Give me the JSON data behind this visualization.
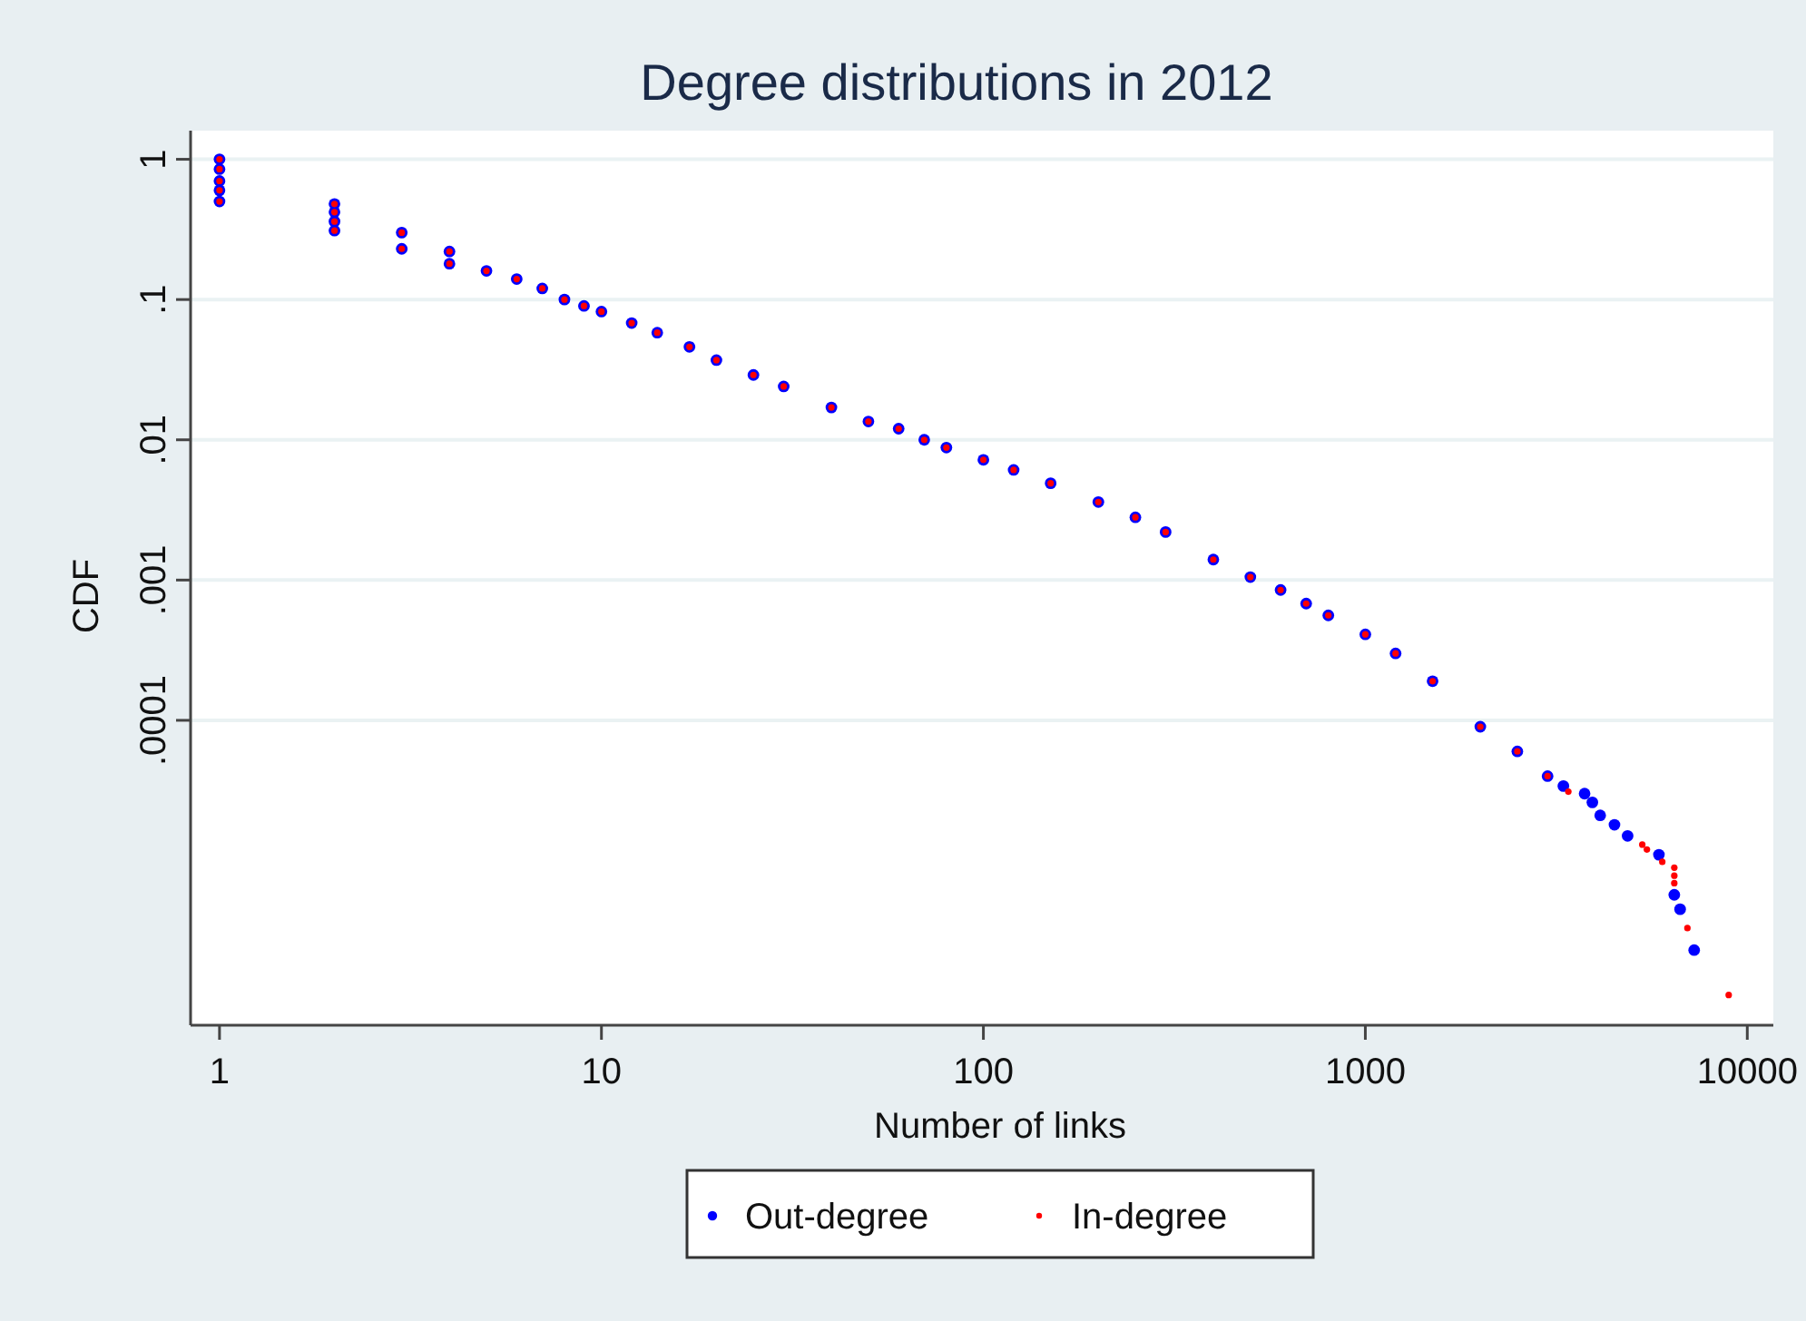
{
  "chart_data": {
    "type": "scatter",
    "title": "Degree distributions in 2012",
    "xlabel": "Number of links",
    "ylabel": "CDF",
    "log": "xy",
    "grid": "y",
    "legend": "bottom",
    "marker": "circle",
    "xlim": [
      0.84,
      11700
    ],
    "ylim": [
      6.7e-07,
      1.6
    ],
    "xticks": [
      1,
      10,
      100,
      1000,
      10000
    ],
    "yticks": [
      {
        "value": 1,
        "label": "1"
      },
      {
        "value": 0.1,
        "label": ".1"
      },
      {
        "value": 0.01,
        "label": ".01"
      },
      {
        "value": 0.001,
        "label": ".001"
      },
      {
        "value": 0.0001,
        "label": ".0001"
      }
    ],
    "series": [
      {
        "name": "Out-degree",
        "color": "#0000ff",
        "x": [
          1,
          1,
          1,
          1,
          1,
          2,
          2,
          2,
          2,
          3,
          3,
          4,
          4,
          5,
          6,
          7,
          8,
          9,
          10,
          12,
          14,
          17,
          20,
          25,
          30,
          40,
          50,
          60,
          70,
          80,
          100,
          120,
          150,
          200,
          250,
          300,
          400,
          500,
          600,
          700,
          800,
          1000,
          1200,
          1500,
          2000,
          2500,
          3000,
          3300,
          3750,
          3930,
          4120,
          4490,
          4860,
          5870,
          6440,
          6670,
          7260
        ],
        "values": [
          1,
          0.85,
          0.7,
          0.6,
          0.5,
          0.48,
          0.42,
          0.36,
          0.31,
          0.3,
          0.23,
          0.22,
          0.18,
          0.16,
          0.14,
          0.12,
          0.1,
          0.09,
          0.082,
          0.068,
          0.058,
          0.046,
          0.037,
          0.029,
          0.024,
          0.017,
          0.0135,
          0.012,
          0.01,
          0.0088,
          0.0072,
          0.0061,
          0.0049,
          0.0036,
          0.0028,
          0.0022,
          0.0014,
          0.00105,
          0.00085,
          0.00068,
          0.00056,
          0.00041,
          0.0003,
          0.00019,
          9e-05,
          6e-05,
          4e-05,
          3.4e-05,
          3e-05,
          2.6e-05,
          2.1e-05,
          1.8e-05,
          1.5e-05,
          1.1e-05,
          5.7e-06,
          4.5e-06,
          2.3e-06
        ]
      },
      {
        "name": "In-degree",
        "color": "#ff0000",
        "x": [
          1,
          1,
          1,
          1,
          1,
          2,
          2,
          2,
          2,
          3,
          3,
          4,
          4,
          5,
          6,
          7,
          8,
          9,
          10,
          12,
          14,
          17,
          20,
          25,
          30,
          40,
          50,
          60,
          70,
          80,
          100,
          120,
          150,
          200,
          250,
          300,
          400,
          500,
          600,
          700,
          800,
          1000,
          1200,
          1500,
          2000,
          2500,
          3000,
          3400,
          5310,
          5460,
          5990,
          6440,
          6440,
          6440,
          6970,
          8940
        ],
        "values": [
          1,
          0.85,
          0.7,
          0.6,
          0.5,
          0.48,
          0.42,
          0.36,
          0.31,
          0.3,
          0.23,
          0.22,
          0.18,
          0.16,
          0.14,
          0.12,
          0.1,
          0.09,
          0.082,
          0.068,
          0.058,
          0.046,
          0.037,
          0.029,
          0.024,
          0.017,
          0.0135,
          0.012,
          0.01,
          0.0088,
          0.0072,
          0.0061,
          0.0049,
          0.0036,
          0.0028,
          0.0022,
          0.0014,
          0.00105,
          0.00085,
          0.00068,
          0.00056,
          0.00041,
          0.0003,
          0.00019,
          9e-05,
          6e-05,
          4e-05,
          3.1e-05,
          1.3e-05,
          1.2e-05,
          9.8e-06,
          8.9e-06,
          7.8e-06,
          6.9e-06,
          3.3e-06,
          1.1e-06
        ]
      }
    ]
  }
}
